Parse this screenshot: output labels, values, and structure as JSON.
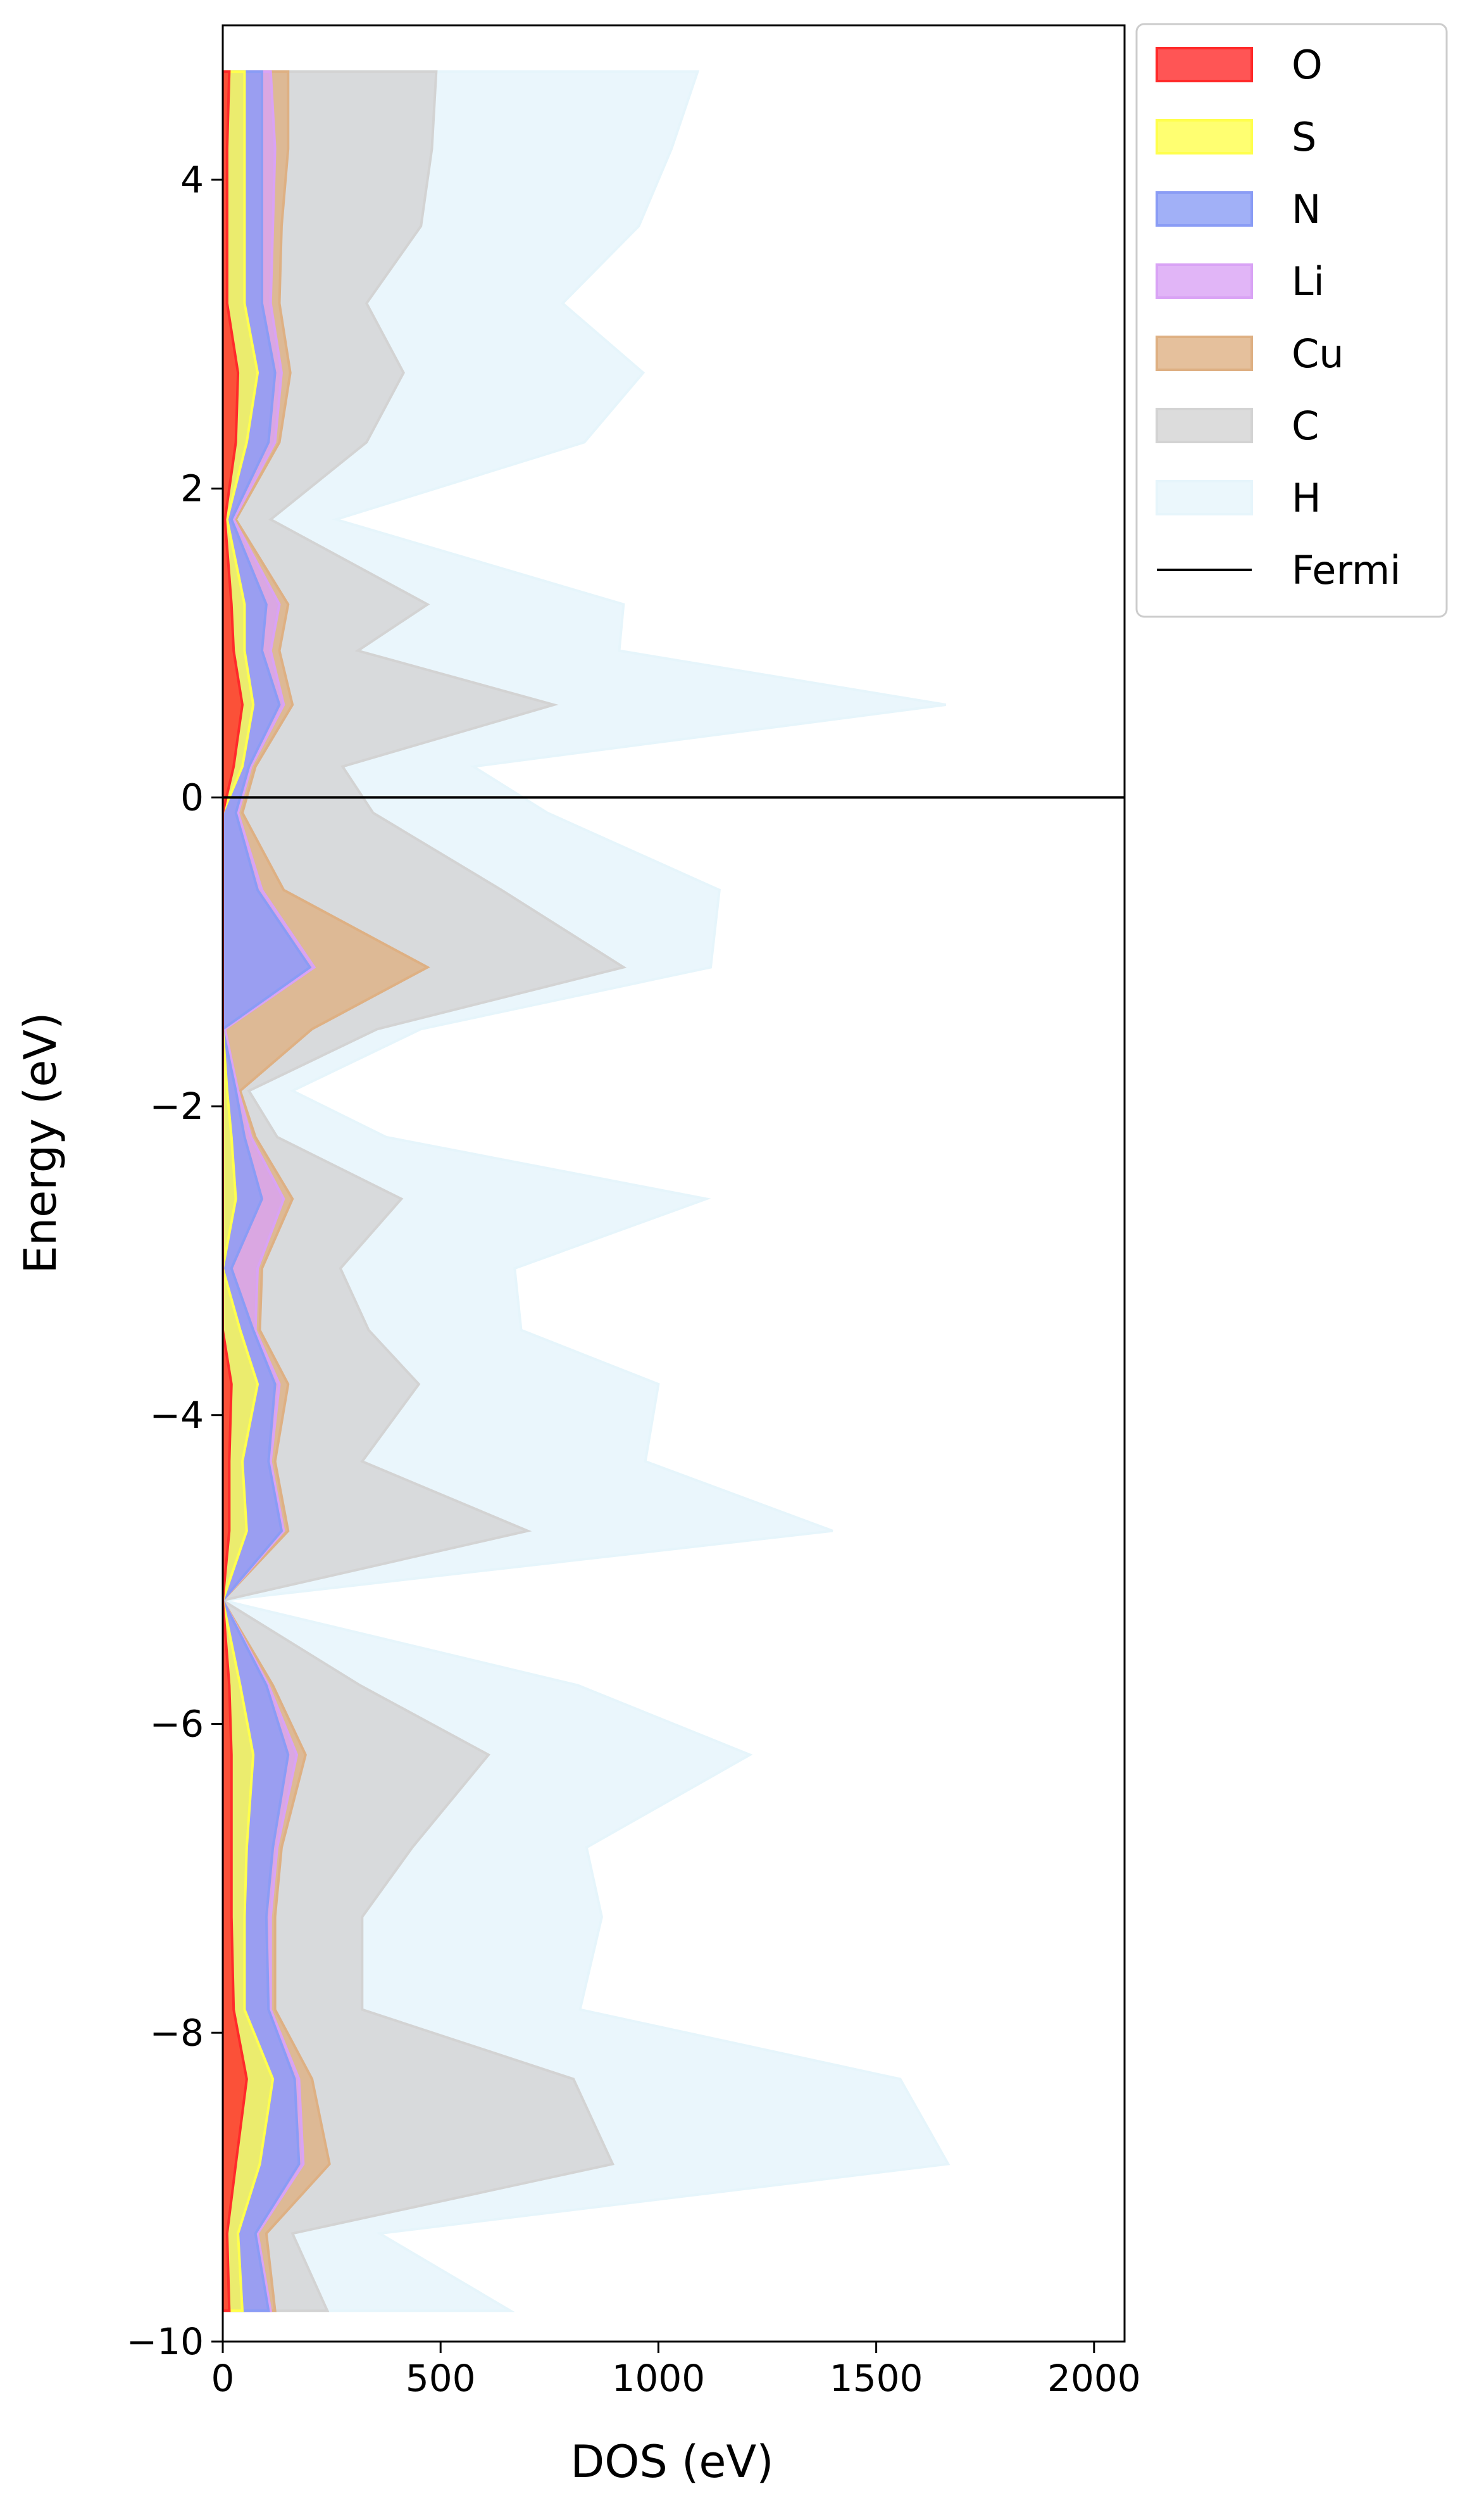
{
  "chart_data": {
    "type": "area",
    "orientation": "horizontal",
    "stacked": true,
    "title": "",
    "xlabel": "DOS (eV)",
    "ylabel": "Energy (eV)",
    "xlim": [
      0,
      2070
    ],
    "ylim": [
      -10,
      5
    ],
    "xticks": [
      0,
      500,
      1000,
      1500,
      2000
    ],
    "xtick_labels": [
      "0",
      "500",
      "1000",
      "1500",
      "2000"
    ],
    "yticks": [
      -10,
      -8,
      -6,
      -4,
      -2,
      0,
      2,
      4
    ],
    "ytick_labels": [
      "−10",
      "−8",
      "−6",
      "−4",
      "−2",
      "0",
      "2",
      "4"
    ],
    "grid": false,
    "legend_position": "outside-top-right",
    "fermi_level": 0,
    "energy": [
      -9.8,
      -9.3,
      -8.85,
      -8.3,
      -7.85,
      -7.25,
      -6.8,
      -6.2,
      -5.75,
      -5.2,
      -4.75,
      -4.3,
      -3.8,
      -3.45,
      -3.05,
      -2.6,
      -2.2,
      -1.9,
      -1.5,
      -1.1,
      -0.6,
      -0.1,
      0.2,
      0.6,
      0.95,
      1.25,
      1.8,
      2.3,
      2.75,
      3.2,
      3.7,
      4.2,
      4.7
    ],
    "series": [
      {
        "name": "O",
        "color": "#ff2a2a",
        "values": [
          15,
          10,
          30,
          55,
          25,
          20,
          20,
          20,
          15,
          0,
          15,
          15,
          20,
          0,
          0,
          0,
          0,
          0,
          0,
          0,
          0,
          0,
          25,
          45,
          25,
          20,
          5,
          30,
          35,
          10,
          10,
          10,
          15
        ]
      },
      {
        "name": "S",
        "color": "#ffff4d",
        "values": [
          30,
          25,
          55,
          60,
          25,
          30,
          35,
          50,
          25,
          0,
          40,
          30,
          60,
          40,
          0,
          30,
          20,
          10,
          0,
          0,
          0,
          0,
          20,
          25,
          25,
          30,
          5,
          25,
          45,
          40,
          40,
          40,
          35
        ]
      },
      {
        "name": "N",
        "color": "#8a9cf5",
        "values": [
          60,
          40,
          90,
          50,
          55,
          50,
          60,
          80,
          60,
          0,
          80,
          60,
          40,
          30,
          20,
          60,
          30,
          20,
          0,
          200,
          80,
          30,
          15,
          60,
          40,
          50,
          10,
          50,
          40,
          40,
          40,
          40,
          40
        ]
      },
      {
        "name": "Li",
        "color": "#d9a3f5",
        "values": [
          5,
          5,
          10,
          10,
          5,
          10,
          10,
          20,
          5,
          0,
          5,
          5,
          10,
          5,
          60,
          50,
          15,
          5,
          5,
          10,
          10,
          5,
          5,
          10,
          20,
          30,
          5,
          15,
          15,
          20,
          25,
          30,
          20
        ]
      },
      {
        "name": "Cu",
        "color": "#deb083",
        "values": [
          10,
          20,
          60,
          30,
          10,
          10,
          10,
          20,
          10,
          0,
          10,
          10,
          20,
          10,
          10,
          20,
          10,
          5,
          200,
          260,
          50,
          10,
          10,
          20,
          20,
          20,
          5,
          10,
          20,
          20,
          20,
          30,
          40
        ]
      },
      {
        "name": "C",
        "color": "#d3d3d3",
        "values": [
          120,
          60,
          650,
          600,
          200,
          200,
          300,
          420,
          200,
          0,
          550,
          200,
          300,
          250,
          180,
          250,
          50,
          20,
          150,
          450,
          500,
          300,
          200,
          600,
          180,
          320,
          80,
          200,
          260,
          200,
          320,
          330,
          340
        ]
      },
      {
        "name": "H",
        "color": "#e6f5fb",
        "values": [
          420,
          200,
          770,
          750,
          500,
          550,
          400,
          600,
          500,
          0,
          700,
          650,
          550,
          350,
          400,
          700,
          250,
          100,
          100,
          200,
          500,
          400,
          300,
          900,
          600,
          450,
          150,
          500,
          550,
          450,
          500,
          550,
          600
        ]
      },
      {
        "name": "Fermi",
        "color": "#000000",
        "values": []
      }
    ]
  }
}
